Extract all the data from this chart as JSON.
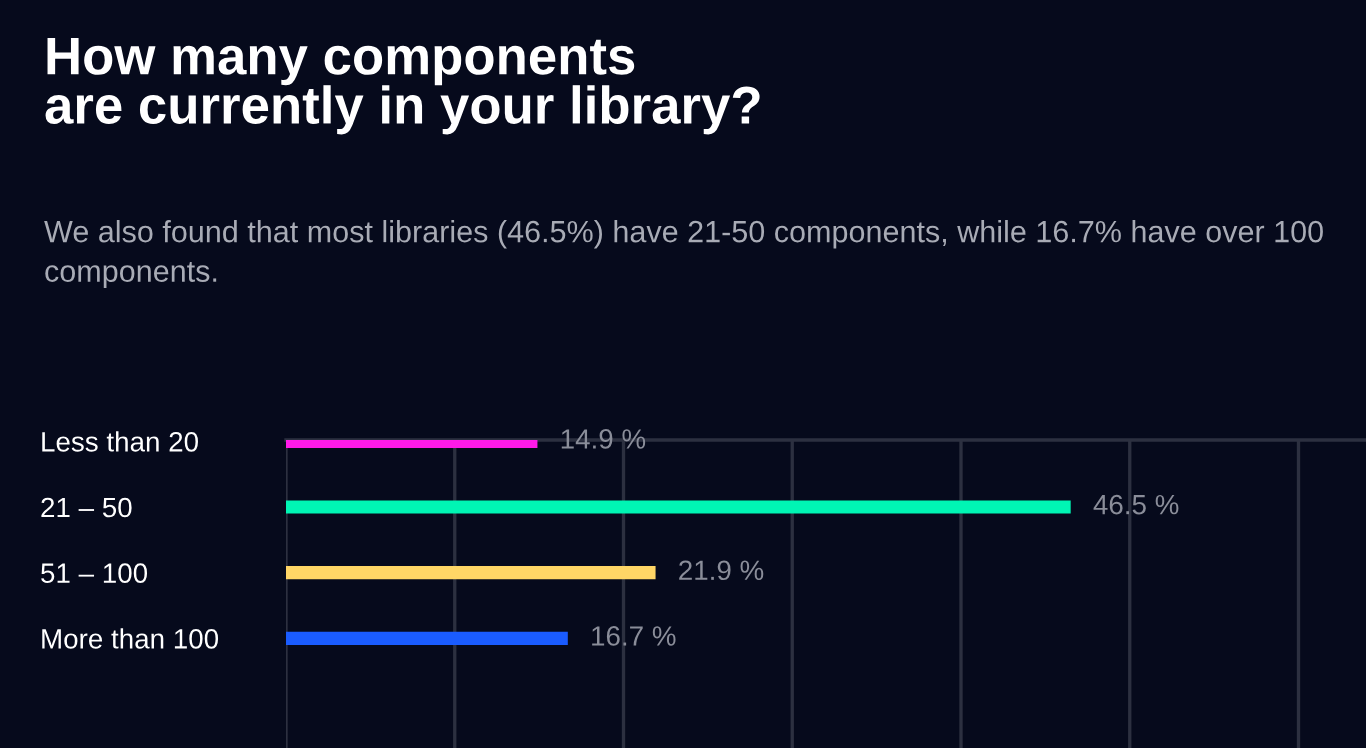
{
  "chart_data": {
    "type": "bar",
    "orientation": "horizontal",
    "title": "How many components\nare currently in your library?",
    "subtitle": "We also found that most libraries (46.5%) have 21-50 components, while 16.7% have over 100 components.",
    "categories": [
      "Less than 20",
      "21 – 50",
      "51 – 100",
      "More than 100"
    ],
    "values": [
      14.9,
      46.5,
      21.9,
      16.7
    ],
    "value_labels": [
      "14.9 %",
      "46.5 %",
      "21.9 %",
      "16.7 %"
    ],
    "colors": [
      "#ff1ae8",
      "#00f5b4",
      "#ffd666",
      "#1a5cff"
    ],
    "xlim": [
      0,
      64
    ],
    "xticks": [
      {
        "value": 0,
        "label": null
      },
      {
        "value": 10,
        "label": null
      },
      {
        "value": 20,
        "label": null
      },
      {
        "value": 30,
        "label": null
      },
      {
        "value": 40,
        "label": null
      },
      {
        "value": 50,
        "label": null
      },
      {
        "value": 60,
        "label": null
      }
    ],
    "grid": "x",
    "tick_labels": "y"
  }
}
